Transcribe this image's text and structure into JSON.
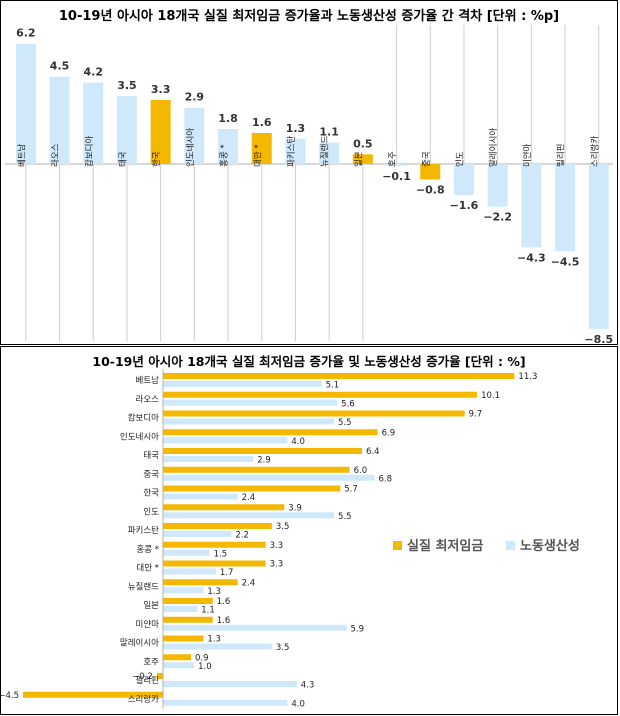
{
  "chart_data": [
    {
      "type": "bar",
      "title": "10-19년 아시아 18개국 실질 최저임금 증가율과 노동생산성 증가율 간 격차 [단위 : %p]",
      "categories": [
        "베트남",
        "라오스",
        "캄보디아",
        "태국",
        "한국",
        "인도네시아",
        "홍콩 *",
        "대만 *",
        "파키스탄",
        "뉴질랜드",
        "일본",
        "호주",
        "중국",
        "인도",
        "말레이시아",
        "미얀마",
        "필리핀",
        "스리랑카"
      ],
      "values": [
        6.2,
        4.5,
        4.2,
        3.5,
        3.3,
        2.9,
        1.8,
        1.6,
        1.3,
        1.1,
        0.5,
        -0.1,
        -0.8,
        -1.6,
        -2.2,
        -4.3,
        -4.5,
        -8.5
      ],
      "value_labels": [
        "6.2",
        "4.5",
        "4.2",
        "3.5",
        "3.3",
        "2.9",
        "1.8",
        "1.6",
        "1.3",
        "1.1",
        "0.5",
        "−0.1",
        "−0.8",
        "−1.6",
        "−2.2",
        "−4.3",
        "−4.5",
        "−8.5"
      ],
      "highlighted": [
        "한국",
        "대만 *",
        "일본",
        "중국"
      ],
      "colors": {
        "normal": "#cfe9fb",
        "highlight": "#f5b800"
      },
      "ylim": [
        -9,
        6.6
      ]
    },
    {
      "type": "bar",
      "orientation": "horizontal",
      "title": "10-19년 아시아 18개국 실질 최저임금 증가율 및 노동생산성 증가율 [단위 : %]",
      "categories": [
        "베트남",
        "라오스",
        "캄보디아",
        "인도네시아",
        "태국",
        "중국",
        "한국",
        "인도",
        "파키스탄",
        "홍콩 *",
        "대만 *",
        "뉴질랜드",
        "일본",
        "미얀마",
        "말레이시아",
        "호주",
        "필리핀",
        "스리랑카"
      ],
      "series": [
        {
          "name": "실질 최저임금",
          "color": "#f5b800",
          "values": [
            11.3,
            10.1,
            9.7,
            6.9,
            6.4,
            6.0,
            5.7,
            3.9,
            3.5,
            3.3,
            3.3,
            2.4,
            1.6,
            1.6,
            1.3,
            0.9,
            -0.2,
            -4.5
          ],
          "labels": [
            "11.3",
            "10.1",
            "9.7",
            "6.9",
            "6.4",
            "6.0",
            "5.7",
            "3.9",
            "3.5",
            "3.3",
            "3.3",
            "2.4",
            "1.6",
            "1.6",
            "1.3",
            "0.9",
            "−0.2",
            "−4.5"
          ]
        },
        {
          "name": "노동생산성",
          "color": "#cfe9fb",
          "values": [
            5.1,
            5.6,
            5.5,
            4.0,
            2.9,
            6.8,
            2.4,
            5.5,
            2.2,
            1.5,
            1.7,
            1.3,
            1.1,
            5.9,
            3.5,
            1.0,
            4.3,
            4.0
          ],
          "labels": [
            "5.1",
            "5.6",
            "5.5",
            "4.0",
            "2.9",
            "6.8",
            "2.4",
            "5.5",
            "2.2",
            "1.5",
            "1.7",
            "1.3",
            "1.1",
            "5.9",
            "3.5",
            "1.0",
            "4.3",
            "4.0"
          ]
        }
      ],
      "legend_position": "right",
      "xlim": [
        -4.5,
        11.3
      ]
    }
  ]
}
